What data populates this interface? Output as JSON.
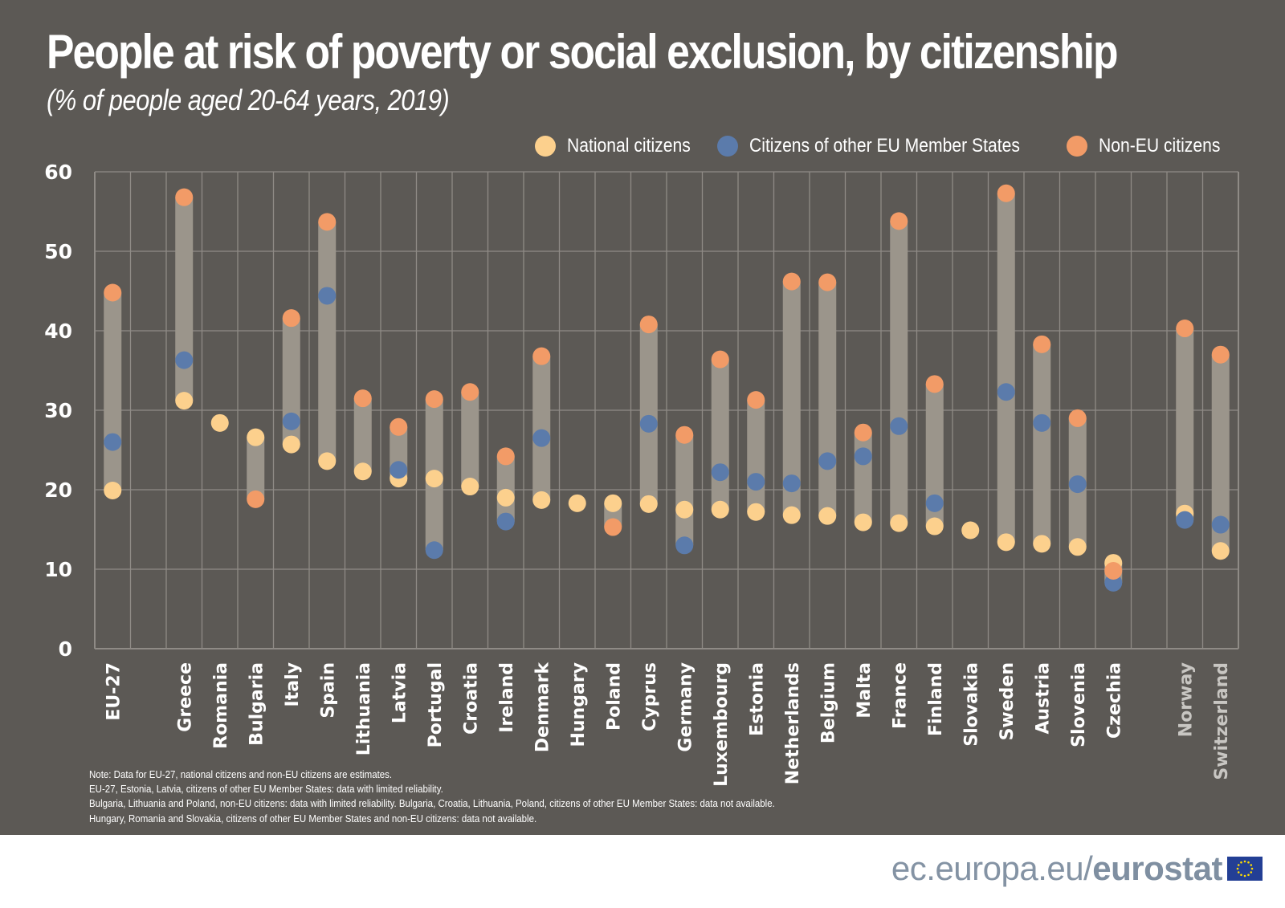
{
  "header": {
    "title": "People at risk of poverty or social exclusion, by citizenship",
    "subtitle": "(% of people aged 20-64 years, 2019)"
  },
  "colors": {
    "background": "#5c5955",
    "national": "#fcd08d",
    "other_eu": "#5b7bab",
    "non_eu": "#f29b67",
    "range_bar": "#9b958b",
    "grid": "#8f8b86"
  },
  "legend": [
    {
      "key": "national",
      "label": "National citizens",
      "icon": "circle-icon"
    },
    {
      "key": "other_eu",
      "label": "Citizens of other EU Member States",
      "icon": "circle-icon"
    },
    {
      "key": "non_eu",
      "label": "Non-EU citizens",
      "icon": "circle-icon"
    }
  ],
  "chart_data": {
    "type": "scatter",
    "subtype": "dot-range",
    "title": "People at risk of poverty or social exclusion, by citizenship",
    "subtitle": "(% of people aged 20-64 years, 2019)",
    "xlabel": "",
    "ylabel": "",
    "ylim": [
      0,
      60
    ],
    "yticks": [
      0,
      10,
      20,
      30,
      40,
      50,
      60
    ],
    "grid": true,
    "legend_position": "top-right",
    "categories": [
      "EU-27",
      "",
      "Greece",
      "Romania",
      "Bulgaria",
      "Italy",
      "Spain",
      "Lithuania",
      "Latvia",
      "Portugal",
      "Croatia",
      "Ireland",
      "Denmark",
      "Hungary",
      "Poland",
      "Cyprus",
      "Germany",
      "Luxembourg",
      "Estonia",
      "Netherlands",
      "Belgium",
      "Malta",
      "France",
      "Finland",
      "Slovakia",
      "Sweden",
      "Austria",
      "Slovenia",
      "Czechia",
      "",
      "Norway",
      "Switzerland"
    ],
    "non_eu_member_categories": [
      "Norway",
      "Switzerland"
    ],
    "series": [
      {
        "name": "National citizens",
        "key": "national",
        "values": [
          19.9,
          null,
          31.2,
          28.4,
          26.6,
          25.7,
          23.6,
          22.3,
          21.4,
          21.4,
          20.4,
          19.0,
          18.7,
          18.3,
          18.3,
          18.2,
          17.5,
          17.5,
          17.2,
          16.8,
          16.7,
          15.9,
          15.8,
          15.4,
          14.9,
          13.4,
          13.2,
          12.8,
          10.8,
          null,
          17.0,
          12.3
        ]
      },
      {
        "name": "Citizens of other EU Member States",
        "key": "other_eu",
        "values": [
          26.0,
          null,
          36.3,
          null,
          null,
          28.6,
          44.4,
          null,
          22.5,
          12.4,
          null,
          16.0,
          26.5,
          null,
          null,
          28.3,
          13.0,
          22.2,
          21.0,
          20.8,
          23.6,
          24.2,
          28.0,
          18.3,
          null,
          32.3,
          28.4,
          20.7,
          8.3,
          null,
          16.2,
          15.6
        ]
      },
      {
        "name": "Non-EU citizens",
        "key": "non_eu",
        "values": [
          44.8,
          null,
          56.8,
          null,
          18.8,
          41.6,
          53.7,
          31.5,
          27.9,
          31.4,
          32.3,
          24.2,
          36.8,
          null,
          15.3,
          40.8,
          26.9,
          36.4,
          31.3,
          46.2,
          46.1,
          27.2,
          53.8,
          33.3,
          null,
          57.3,
          38.3,
          29.0,
          9.8,
          null,
          40.3,
          37.0
        ]
      }
    ]
  },
  "notes": [
    "Note: Data for EU-27, national citizens and non-EU citizens are estimates.",
    "EU-27, Estonia, Latvia, citizens of other EU Member States: data with limited reliability.",
    "Bulgaria, Lithuania and Poland, non-EU citizens: data with limited reliability. Bulgaria, Croatia, Lithuania, Poland, citizens of other EU Member States: data not available.",
    "Hungary, Romania and Slovakia, citizens of other EU Member States and non-EU citizens: data not available."
  ],
  "footer": {
    "url_prefix": "ec.europa.eu/",
    "url_bold": "eurostat",
    "logo": "eu-flag-icon"
  }
}
